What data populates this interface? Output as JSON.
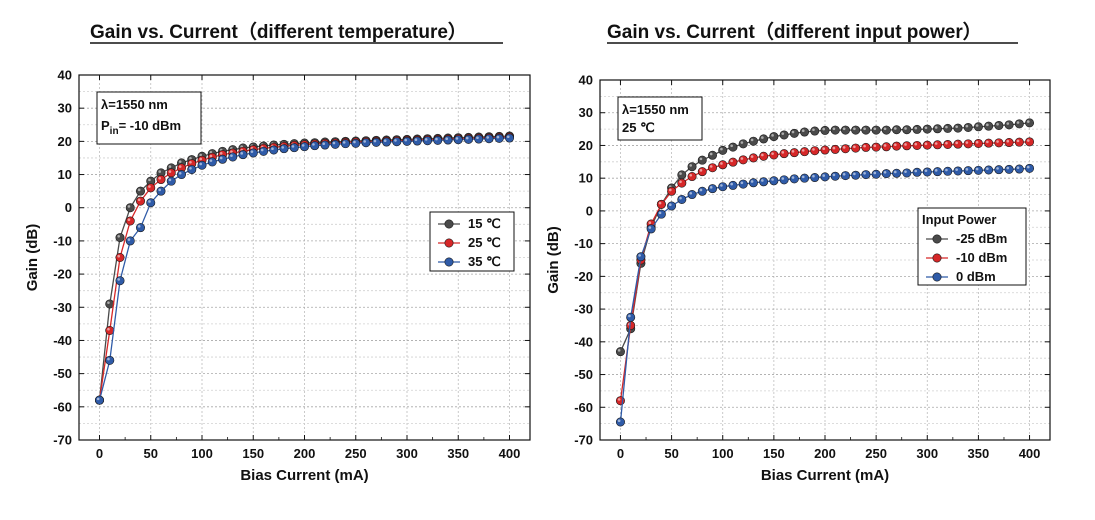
{
  "chart_data": [
    {
      "type": "line",
      "title": "Gain vs. Current（different temperature）",
      "xlabel": "Bias Current (mA)",
      "ylabel": "Gain (dB)",
      "xlim": [
        -20,
        420
      ],
      "ylim": [
        -70,
        40
      ],
      "xticks": [
        "0",
        "50",
        "100",
        "150",
        "200",
        "250",
        "300",
        "350",
        "400"
      ],
      "yticks": [
        "-70",
        "-60",
        "-50",
        "-40",
        "-30",
        "-20",
        "-10",
        "0",
        "10",
        "20",
        "30",
        "40"
      ],
      "grid": true,
      "note": {
        "line1": "λ=1550 nm",
        "line2_prefix": "P",
        "line2_sub": "in",
        "line2_rest": "= -10 dBm",
        "placement": "top-left"
      },
      "legend": {
        "placement": "right-middle"
      },
      "x": [
        0,
        10,
        20,
        30,
        40,
        50,
        60,
        70,
        80,
        90,
        100,
        110,
        120,
        130,
        140,
        150,
        160,
        170,
        180,
        190,
        200,
        210,
        220,
        230,
        240,
        250,
        260,
        270,
        280,
        290,
        300,
        310,
        320,
        330,
        340,
        350,
        360,
        370,
        380,
        390,
        400
      ],
      "series": [
        {
          "name": "15 ℃",
          "color": "#4a4a4a",
          "values": [
            -58,
            -29,
            -9,
            0,
            5,
            8,
            10.5,
            12,
            13.5,
            14.5,
            15.5,
            16.3,
            17,
            17.5,
            18,
            18.3,
            18.6,
            18.9,
            19.1,
            19.3,
            19.5,
            19.6,
            19.8,
            19.9,
            20,
            20.1,
            20.2,
            20.3,
            20.4,
            20.5,
            20.6,
            20.7,
            20.8,
            20.9,
            21,
            21.1,
            21.2,
            21.3,
            21.4,
            21.5,
            21.6
          ]
        },
        {
          "name": "25 ℃",
          "color": "#d62728",
          "values": [
            -58,
            -37,
            -15,
            -4,
            2,
            6,
            8.5,
            10.5,
            12,
            13.3,
            14.3,
            15.2,
            16,
            16.5,
            17,
            17.5,
            17.9,
            18.2,
            18.5,
            18.8,
            19,
            19.2,
            19.4,
            19.5,
            19.7,
            19.8,
            19.9,
            20,
            20.1,
            20.2,
            20.3,
            20.4,
            20.5,
            20.6,
            20.7,
            20.8,
            20.9,
            21,
            21.1,
            21.2,
            21.3
          ]
        },
        {
          "name": "35 ℃",
          "color": "#2f5ba8",
          "values": [
            -58,
            -46,
            -22,
            -10,
            -6,
            1.5,
            5,
            8,
            10,
            11.5,
            12.8,
            13.8,
            14.6,
            15.3,
            16,
            16.5,
            17,
            17.4,
            17.8,
            18.1,
            18.4,
            18.7,
            18.9,
            19.1,
            19.3,
            19.4,
            19.6,
            19.7,
            19.8,
            19.9,
            20,
            20.1,
            20.2,
            20.3,
            20.4,
            20.5,
            20.6,
            20.7,
            20.8,
            20.9,
            21
          ]
        }
      ]
    },
    {
      "type": "line",
      "title": "Gain vs. Current（different input power）",
      "xlabel": "Bias Current (mA)",
      "ylabel": "Gain (dB)",
      "xlim": [
        -20,
        420
      ],
      "ylim": [
        -70,
        40
      ],
      "xticks": [
        "0",
        "50",
        "100",
        "150",
        "200",
        "250",
        "300",
        "350",
        "400"
      ],
      "yticks": [
        "-70",
        "-60",
        "-50",
        "-40",
        "-30",
        "-20",
        "-10",
        "0",
        "10",
        "20",
        "30",
        "40"
      ],
      "grid": true,
      "note": {
        "line1": "λ=1550 nm",
        "line2": "25 ℃",
        "placement": "top-left"
      },
      "legend": {
        "title": "Input Power",
        "placement": "right-middle"
      },
      "x": [
        0,
        10,
        20,
        30,
        40,
        50,
        60,
        70,
        80,
        90,
        100,
        110,
        120,
        130,
        140,
        150,
        160,
        170,
        180,
        190,
        200,
        210,
        220,
        230,
        240,
        250,
        260,
        270,
        280,
        290,
        300,
        310,
        320,
        330,
        340,
        350,
        360,
        370,
        380,
        390,
        400
      ],
      "series": [
        {
          "name": "-25 dBm",
          "color": "#4a4a4a",
          "values": [
            -43,
            -36,
            -16,
            -5,
            2,
            7,
            11,
            13.5,
            15.5,
            17,
            18.5,
            19.5,
            20.5,
            21.3,
            22,
            22.7,
            23.2,
            23.7,
            24.1,
            24.4,
            24.6,
            24.7,
            24.7,
            24.7,
            24.7,
            24.7,
            24.7,
            24.8,
            24.8,
            24.9,
            25,
            25.1,
            25.2,
            25.3,
            25.5,
            25.7,
            25.9,
            26.1,
            26.3,
            26.6,
            26.9
          ]
        },
        {
          "name": "-10 dBm",
          "color": "#d62728",
          "values": [
            -58,
            -35,
            -15,
            -4,
            2,
            6,
            8.5,
            10.5,
            12,
            13.2,
            14.1,
            14.9,
            15.6,
            16.2,
            16.7,
            17.1,
            17.5,
            17.8,
            18.1,
            18.4,
            18.6,
            18.8,
            19,
            19.2,
            19.4,
            19.5,
            19.6,
            19.8,
            19.9,
            20,
            20.1,
            20.2,
            20.3,
            20.4,
            20.5,
            20.6,
            20.7,
            20.8,
            20.9,
            21,
            21.1
          ]
        },
        {
          "name": "0 dBm",
          "color": "#2f5ba8",
          "values": [
            -64.5,
            -32.5,
            -14,
            -5.5,
            -1,
            1.5,
            3.5,
            5,
            6,
            6.8,
            7.4,
            7.8,
            8.2,
            8.6,
            8.9,
            9.2,
            9.5,
            9.8,
            10,
            10.2,
            10.4,
            10.6,
            10.8,
            10.9,
            11.1,
            11.2,
            11.4,
            11.5,
            11.6,
            11.8,
            11.9,
            12,
            12.1,
            12.2,
            12.3,
            12.4,
            12.5,
            12.6,
            12.7,
            12.8,
            13
          ]
        }
      ]
    }
  ]
}
